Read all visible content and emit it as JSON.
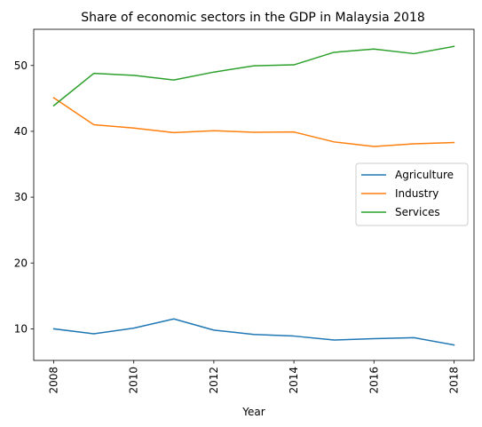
{
  "chart_data": {
    "type": "line",
    "title": "Share of economic sectors in the GDP in Malaysia 2018",
    "xlabel": "Year",
    "ylabel": "",
    "x": [
      2008,
      2009,
      2010,
      2011,
      2012,
      2013,
      2014,
      2015,
      2016,
      2017,
      2018
    ],
    "xticks": [
      "2008",
      "2010",
      "2012",
      "2014",
      "2016",
      "2018"
    ],
    "yticks": [
      "10",
      "20",
      "30",
      "40",
      "50"
    ],
    "xlim": [
      2007.5,
      2018.5
    ],
    "ylim": [
      5.2,
      55.5
    ],
    "grid": false,
    "legend_position": "center-right",
    "series": [
      {
        "name": "Agriculture",
        "color": "#1f77b4",
        "values": [
          10.0,
          9.25,
          10.1,
          11.5,
          9.8,
          9.15,
          8.9,
          8.3,
          8.5,
          8.65,
          7.55
        ]
      },
      {
        "name": "Industry",
        "color": "#ff7f0e",
        "values": [
          45.1,
          41.0,
          40.5,
          39.8,
          40.1,
          39.85,
          39.9,
          38.4,
          37.7,
          38.1,
          38.3
        ]
      },
      {
        "name": "Services",
        "color": "#2ca02c",
        "values": [
          43.9,
          48.8,
          48.5,
          47.8,
          49.0,
          49.95,
          50.1,
          52.0,
          52.5,
          51.8,
          52.9
        ]
      }
    ]
  }
}
